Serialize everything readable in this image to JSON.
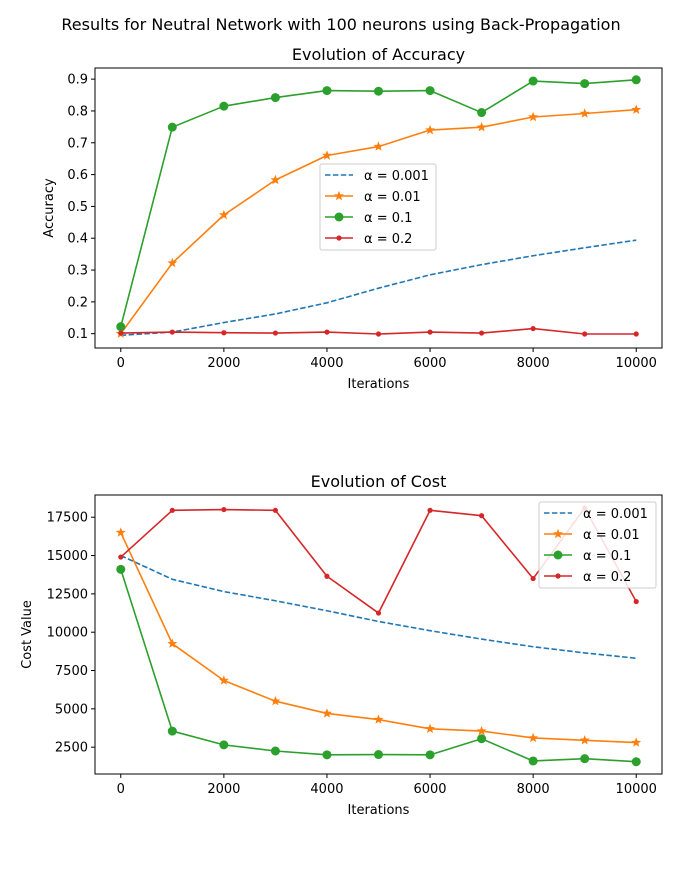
{
  "figure": {
    "suptitle": "Results for Neutral Network with 100 neurons using Back-Propagation"
  },
  "chart_data": [
    {
      "type": "line",
      "title": "Evolution of Accuracy",
      "xlabel": "Iterations",
      "ylabel": "Accuracy",
      "xlim": [
        -500,
        10500
      ],
      "ylim": [
        0.055,
        0.935
      ],
      "xticks": [
        0,
        2000,
        4000,
        6000,
        8000,
        10000
      ],
      "yticks": [
        0.1,
        0.2,
        0.3,
        0.4,
        0.5,
        0.6,
        0.7,
        0.8,
        0.9
      ],
      "ytick_labels": [
        "0.1",
        "0.2",
        "0.3",
        "0.4",
        "0.5",
        "0.6",
        "0.7",
        "0.8",
        "0.9"
      ],
      "legend_position": "center-right",
      "x": [
        0,
        1000,
        2000,
        3000,
        4000,
        5000,
        6000,
        7000,
        8000,
        9000,
        10000
      ],
      "series": [
        {
          "name": "α = 0.001",
          "color": "#1f77b4",
          "style": "dashed",
          "marker": "none",
          "values": [
            0.095,
            0.105,
            0.135,
            0.162,
            0.197,
            0.243,
            0.285,
            0.317,
            0.345,
            0.37,
            0.394
          ]
        },
        {
          "name": "α = 0.01",
          "color": "#ff7f0e",
          "style": "solid",
          "marker": "star",
          "values": [
            0.1,
            0.322,
            0.473,
            0.583,
            0.66,
            0.688,
            0.74,
            0.749,
            0.781,
            0.792,
            0.804
          ]
        },
        {
          "name": "α = 0.1",
          "color": "#2ca02c",
          "style": "solid",
          "marker": "circle",
          "values": [
            0.122,
            0.749,
            0.815,
            0.842,
            0.864,
            0.862,
            0.864,
            0.795,
            0.894,
            0.886,
            0.898
          ]
        },
        {
          "name": "α = 0.2",
          "color": "#d62728",
          "style": "solid",
          "marker": "dot",
          "values": [
            0.102,
            0.105,
            0.103,
            0.102,
            0.105,
            0.099,
            0.105,
            0.102,
            0.116,
            0.099,
            0.099
          ]
        }
      ]
    },
    {
      "type": "line",
      "title": "Evolution of Cost",
      "xlabel": "Iterations",
      "ylabel": "Cost Value",
      "xlim": [
        -500,
        10500
      ],
      "ylim": [
        750,
        18950
      ],
      "xticks": [
        0,
        2000,
        4000,
        6000,
        8000,
        10000
      ],
      "yticks": [
        2500,
        5000,
        7500,
        10000,
        12500,
        15000,
        17500
      ],
      "ytick_labels": [
        "2500",
        "5000",
        "7500",
        "10000",
        "12500",
        "15000",
        "17500"
      ],
      "legend_position": "upper right",
      "x": [
        0,
        1000,
        2000,
        3000,
        4000,
        5000,
        6000,
        7000,
        8000,
        9000,
        10000
      ],
      "series": [
        {
          "name": "α = 0.001",
          "color": "#1f77b4",
          "style": "dashed",
          "marker": "none",
          "values": [
            15000,
            13450,
            12650,
            12050,
            11400,
            10700,
            10100,
            9550,
            9050,
            8650,
            8300
          ]
        },
        {
          "name": "α = 0.01",
          "color": "#ff7f0e",
          "style": "solid",
          "marker": "star",
          "values": [
            16500,
            9250,
            6850,
            5500,
            4700,
            4300,
            3700,
            3550,
            3100,
            2950,
            2800
          ]
        },
        {
          "name": "α = 0.1",
          "color": "#2ca02c",
          "style": "solid",
          "marker": "circle",
          "values": [
            14100,
            3550,
            2650,
            2250,
            2000,
            2020,
            2000,
            3050,
            1600,
            1750,
            1550
          ]
        },
        {
          "name": "α = 0.2",
          "color": "#d62728",
          "style": "solid",
          "marker": "dot",
          "values": [
            14900,
            17950,
            18000,
            17950,
            13650,
            11250,
            17950,
            17600,
            13500,
            18100,
            12000
          ]
        }
      ]
    }
  ]
}
